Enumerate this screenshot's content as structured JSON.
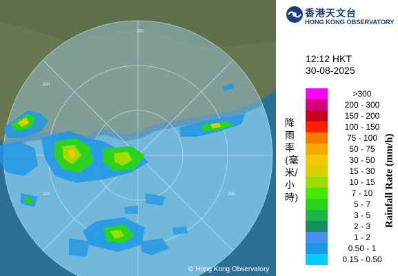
{
  "logo": {
    "zh": "香港天文台",
    "en": "HONG KONG OBSERVATORY"
  },
  "time": "12:12 HKT",
  "date": "30-08-2025",
  "legend": {
    "zh_title": "降雨率(毫米/小時)",
    "en_title": "Rainfall Rate (mm/h)",
    "items": [
      {
        "label": ">300",
        "color": "#ff00ff"
      },
      {
        "label": "200 - 300",
        "color": "#d4007e"
      },
      {
        "label": "150 - 200",
        "color": "#c8001e"
      },
      {
        "label": "100 - 150",
        "color": "#ff1e00"
      },
      {
        "label": "75 - 100",
        "color": "#f47b00"
      },
      {
        "label": "50 - 75",
        "color": "#f4a800"
      },
      {
        "label": "30 - 50",
        "color": "#f4c800"
      },
      {
        "label": "15 - 30",
        "color": "#d8d000"
      },
      {
        "label": "10 - 15",
        "color": "#9edc00"
      },
      {
        "label": "7 - 10",
        "color": "#4be600"
      },
      {
        "label": "5 - 7",
        "color": "#2bd21e"
      },
      {
        "label": "3 - 5",
        "color": "#1eb446"
      },
      {
        "label": "2 - 3",
        "color": "#168c5a"
      },
      {
        "label": "1 - 2",
        "color": "#4b8cf0"
      },
      {
        "label": "0.50 - 1",
        "color": "#1e96e6"
      },
      {
        "label": "0.15 - 0.50",
        "color": "#00cdfa"
      }
    ]
  },
  "map": {
    "range_rings": [
      "200",
      "200",
      "200",
      "200"
    ]
  },
  "copyright": "© Hong Kong Observatory"
}
